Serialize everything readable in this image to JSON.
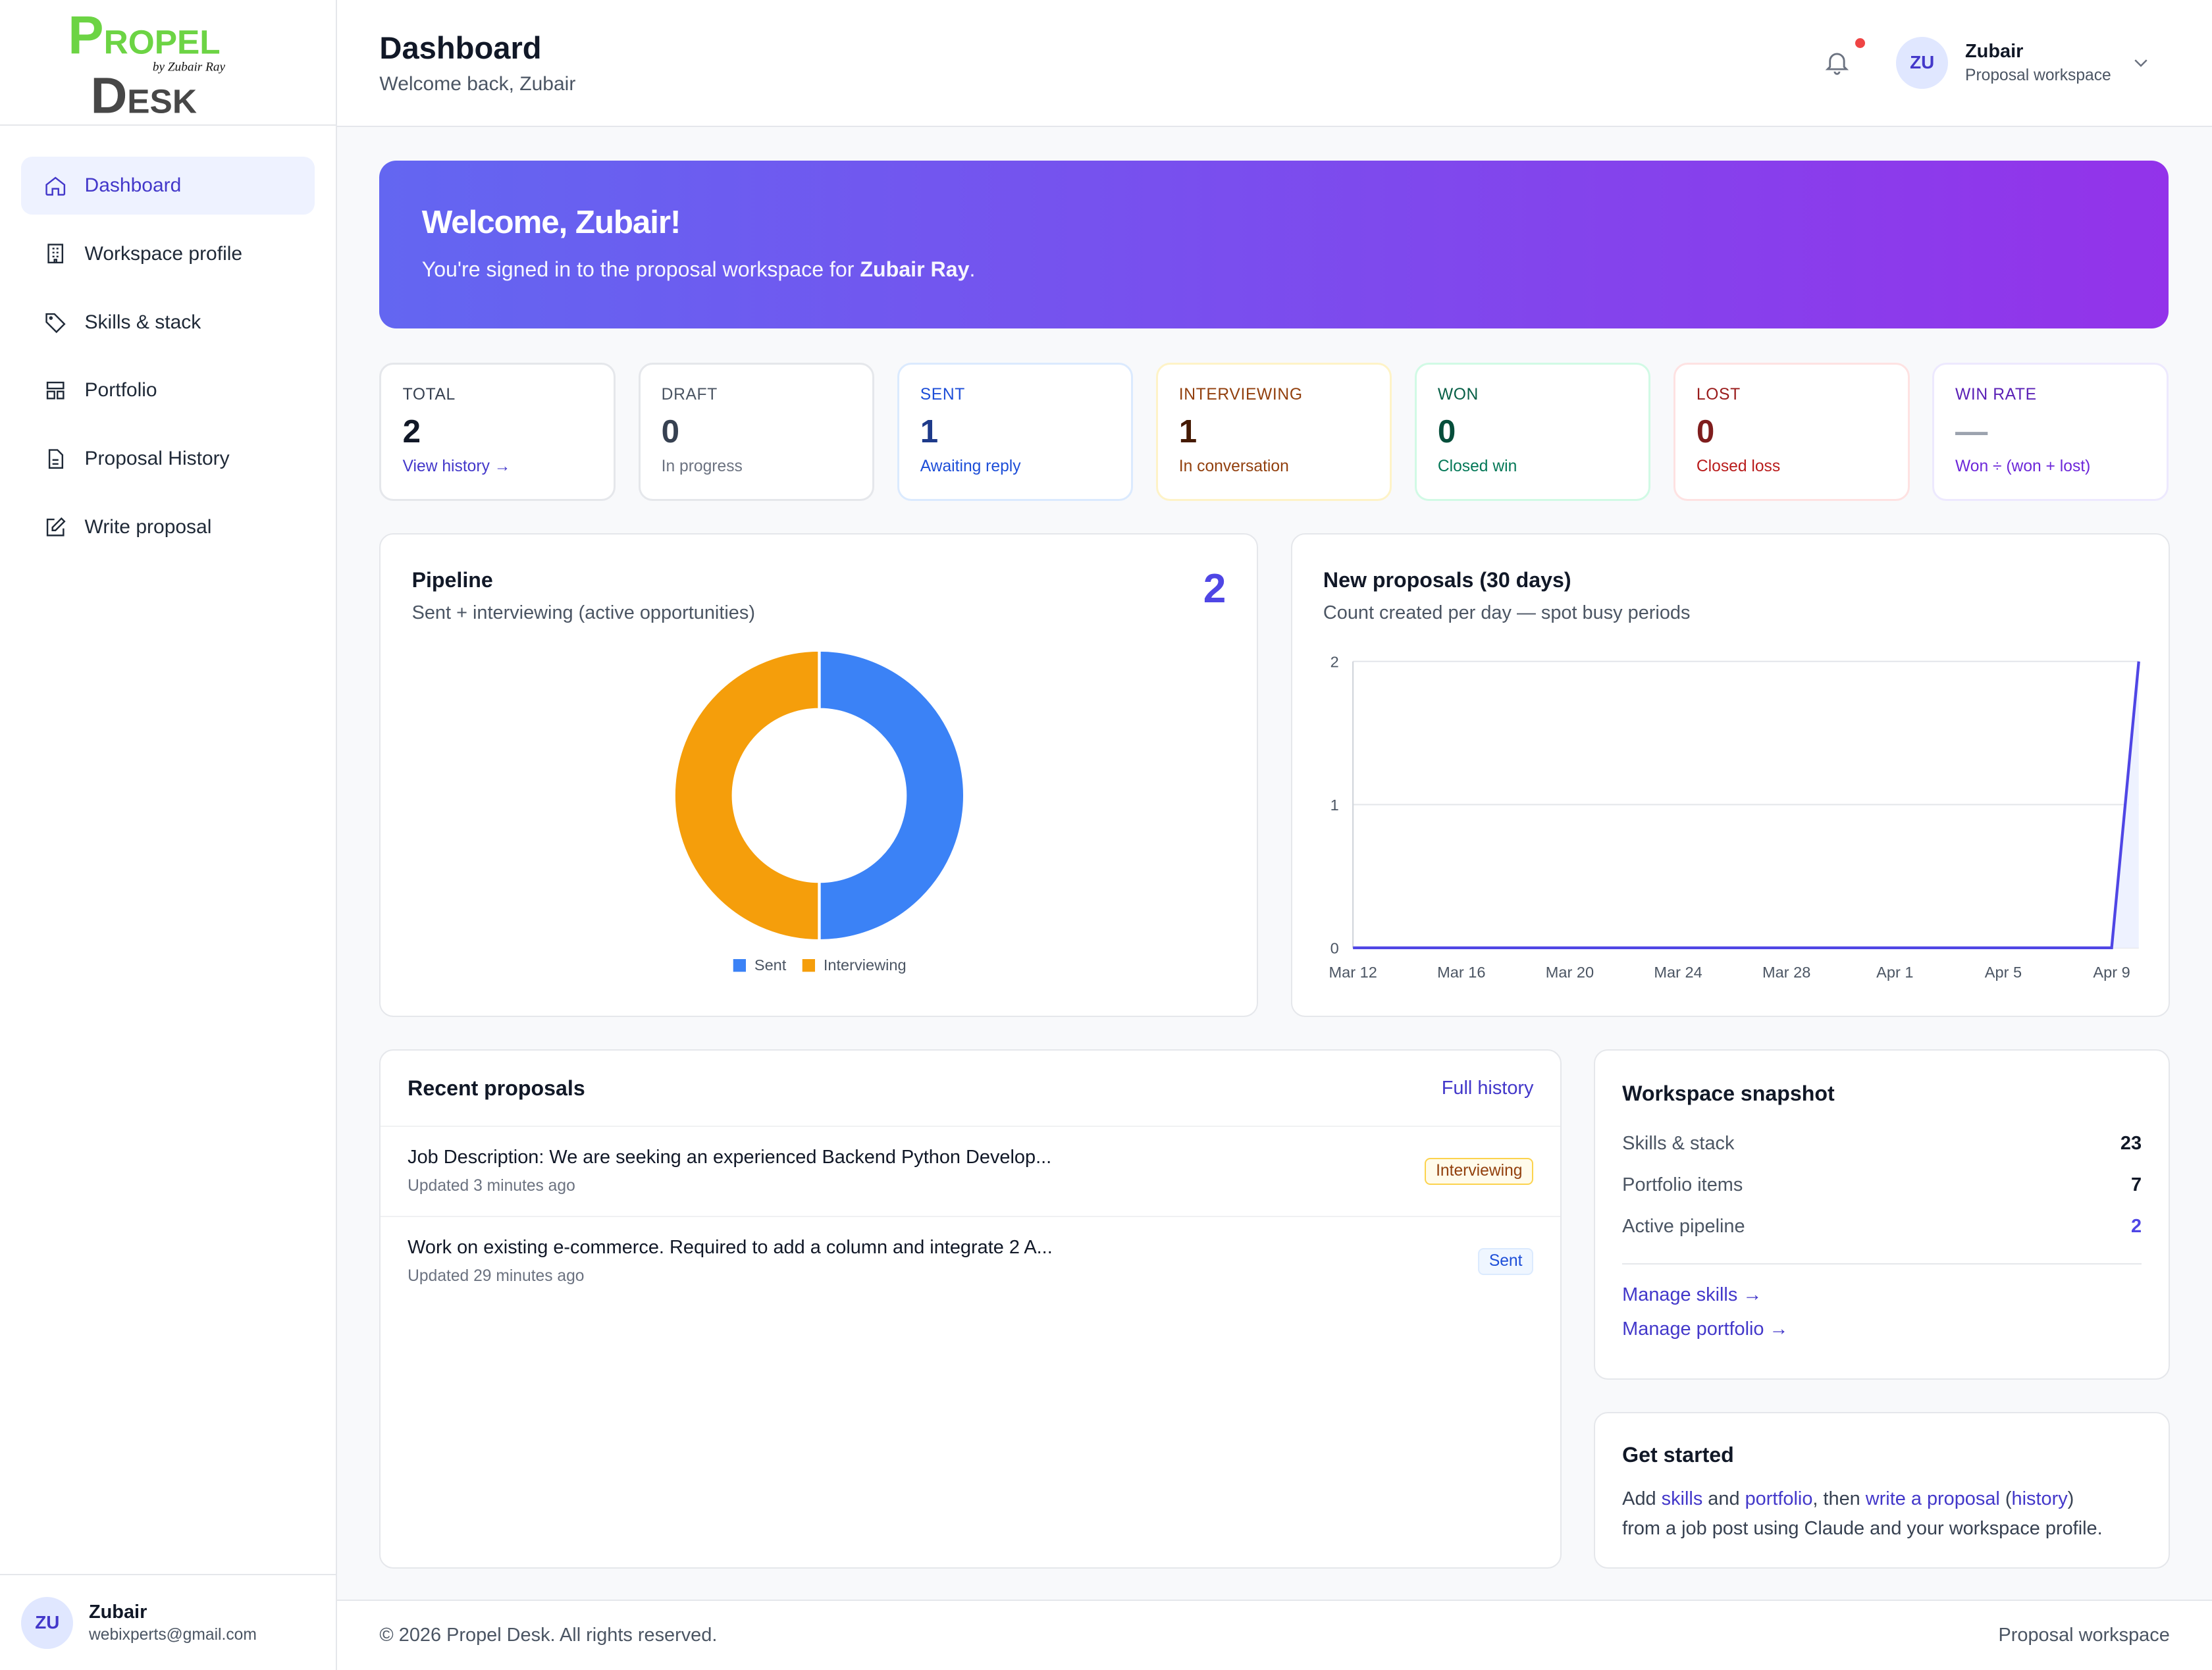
{
  "brand": {
    "logo_text_top": "PROPEL",
    "logo_text_bottom": "DESK",
    "logo_byline": "by Zubair Ray"
  },
  "sidebar": {
    "items": [
      {
        "label": "Dashboard",
        "icon": "home-icon"
      },
      {
        "label": "Workspace profile",
        "icon": "building-icon"
      },
      {
        "label": "Skills & stack",
        "icon": "tag-icon"
      },
      {
        "label": "Portfolio",
        "icon": "layout-icon"
      },
      {
        "label": "Proposal History",
        "icon": "document-icon"
      },
      {
        "label": "Write proposal",
        "icon": "edit-icon"
      }
    ],
    "user": {
      "initials": "ZU",
      "name": "Zubair",
      "email": "webixperts@gmail.com"
    }
  },
  "header": {
    "title": "Dashboard",
    "subtitle": "Welcome back, Zubair",
    "user_initials": "ZU",
    "user_name": "Zubair",
    "user_role": "Proposal workspace"
  },
  "banner": {
    "title": "Welcome, Zubair!",
    "text": "You're signed in to the proposal workspace for ",
    "name": "Zubair Ray",
    "end": "."
  },
  "stats": [
    {
      "label": "TOTAL",
      "value": "2",
      "sub": "View history →",
      "color": "#374151",
      "vcolor": "#111827",
      "scolor": "#4338ca",
      "border": "#e5e7eb"
    },
    {
      "label": "DRAFT",
      "value": "0",
      "sub": "In progress",
      "color": "#4b5563",
      "vcolor": "#374151",
      "scolor": "#6b7280",
      "border": "#e5e7eb"
    },
    {
      "label": "SENT",
      "value": "1",
      "sub": "Awaiting reply",
      "color": "#1d4ed8",
      "vcolor": "#1e3a8a",
      "scolor": "#1d4ed8",
      "border": "#dbeafe"
    },
    {
      "label": "INTERVIEWING",
      "value": "1",
      "sub": "In conversation",
      "color": "#92400e",
      "vcolor": "#451a03",
      "scolor": "#92400e",
      "border": "#fef3c7"
    },
    {
      "label": "WON",
      "value": "0",
      "sub": "Closed win",
      "color": "#065f46",
      "vcolor": "#064e3b",
      "scolor": "#047857",
      "border": "#d1fae5"
    },
    {
      "label": "LOST",
      "value": "0",
      "sub": "Closed loss",
      "color": "#991b1b",
      "vcolor": "#7f1d1d",
      "scolor": "#b91c1c",
      "border": "#fee2e2"
    },
    {
      "label": "WIN RATE",
      "value": "—",
      "sub": "Won ÷ (won + lost)",
      "color": "#5b21b6",
      "vcolor": "#9ca3af",
      "scolor": "#6d28d9",
      "border": "#ede9fe"
    }
  ],
  "pipeline": {
    "title": "Pipeline",
    "subtitle": "Sent + interviewing (active opportunities)",
    "count": "2"
  },
  "new_proposals": {
    "title": "New proposals (30 days)",
    "subtitle": "Count created per day — spot busy periods"
  },
  "chart_data": [
    {
      "type": "pie",
      "title": "Pipeline",
      "categories": [
        "Sent",
        "Interviewing"
      ],
      "values": [
        1,
        1
      ],
      "colors": [
        "#3b82f6",
        "#f59e0b"
      ],
      "legend": "bottom"
    },
    {
      "type": "area",
      "title": "New proposals (30 days)",
      "x_ticks": [
        "Mar 12",
        "Mar 16",
        "Mar 20",
        "Mar 24",
        "Mar 28",
        "Apr 1",
        "Apr 5",
        "Apr 9"
      ],
      "y_ticks": [
        "0",
        "1",
        "2"
      ],
      "ylim": [
        0,
        2
      ],
      "x": [
        "Mar 12",
        "Mar 13",
        "Mar 14",
        "Mar 15",
        "Mar 16",
        "Mar 17",
        "Mar 18",
        "Mar 19",
        "Mar 20",
        "Mar 21",
        "Mar 22",
        "Mar 23",
        "Mar 24",
        "Mar 25",
        "Mar 26",
        "Mar 27",
        "Mar 28",
        "Mar 29",
        "Mar 30",
        "Mar 31",
        "Apr 1",
        "Apr 2",
        "Apr 3",
        "Apr 4",
        "Apr 5",
        "Apr 6",
        "Apr 7",
        "Apr 8",
        "Apr 9",
        "Apr 10"
      ],
      "values": [
        0,
        0,
        0,
        0,
        0,
        0,
        0,
        0,
        0,
        0,
        0,
        0,
        0,
        0,
        0,
        0,
        0,
        0,
        0,
        0,
        0,
        0,
        0,
        0,
        0,
        0,
        0,
        0,
        0,
        2
      ],
      "color": "#4f46e5",
      "grid": true
    }
  ],
  "recent": {
    "title": "Recent proposals",
    "link": "Full history",
    "items": [
      {
        "title": "Job Description: We are seeking an experienced Backend Python Develop...",
        "updated": "Updated 3 minutes ago",
        "status": "Interviewing"
      },
      {
        "title": "Work on existing e-commerce. Required to add a column and integrate 2 A...",
        "updated": "Updated 29 minutes ago",
        "status": "Sent"
      }
    ]
  },
  "snapshot": {
    "title": "Workspace snapshot",
    "rows": [
      {
        "label": "Skills & stack",
        "value": "23"
      },
      {
        "label": "Portfolio items",
        "value": "7"
      },
      {
        "label": "Active pipeline",
        "value": "2"
      }
    ],
    "link1": "Manage skills →",
    "link2": "Manage portfolio →"
  },
  "get_started": {
    "title": "Get started",
    "t1": "Add ",
    "l1": "skills",
    "t2": " and ",
    "l2": "portfolio",
    "t3": ", then ",
    "l3": "write a proposal",
    "t4": " (",
    "l4": "history",
    "t5": ")",
    "t6": "from a job post using Claude and your workspace profile."
  },
  "footer": {
    "copyright": "© 2026 Propel Desk. All rights reserved.",
    "right": "Proposal workspace"
  }
}
